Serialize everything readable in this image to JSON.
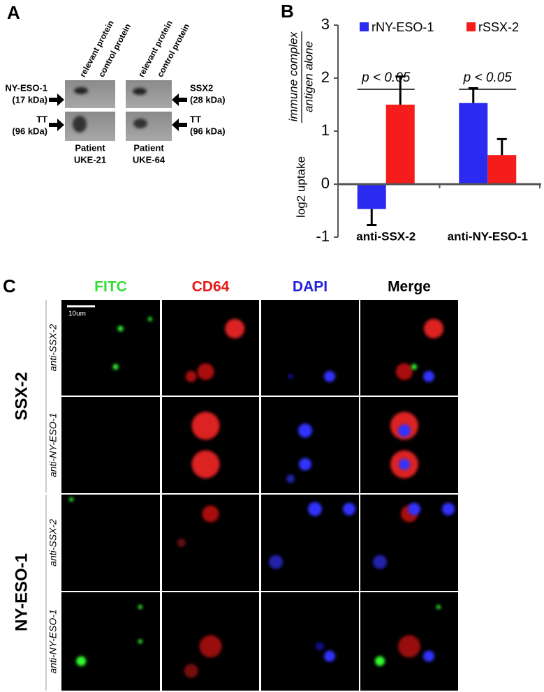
{
  "panel_a": {
    "letter": "A",
    "columns": [
      "relevant protein",
      "control protein",
      "relevant protein",
      "control protein"
    ],
    "left_labels": [
      [
        "NY-ESO-1",
        "(17 kDa)"
      ],
      [
        "TT",
        "(96 kDa)"
      ]
    ],
    "right_labels": [
      [
        "SSX2",
        "(28 kDa)"
      ],
      [
        "TT",
        "(96 kDa)"
      ]
    ],
    "patients": [
      [
        "Patient",
        "UKE-21"
      ],
      [
        "Patient",
        "UKE-64"
      ]
    ]
  },
  "chart_data": {
    "type": "bar",
    "letter": "B",
    "y_label": "log2 uptake",
    "y_label_numerator": "immune complex",
    "y_label_denominator": "antigen alone",
    "categories": [
      "anti-SSX-2",
      "anti-NY-ESO-1"
    ],
    "series": [
      {
        "name": "rNY-ESO-1",
        "color": "#2a2af0",
        "values": [
          -0.47,
          1.53
        ],
        "errors": [
          0.3,
          0.28
        ]
      },
      {
        "name": "rSSX-2",
        "color": "#f51c1c",
        "values": [
          1.5,
          0.55
        ],
        "errors": [
          0.53,
          0.3
        ]
      }
    ],
    "annotations": [
      "p < 0.05",
      "p < 0.05"
    ],
    "ylim": [
      -1,
      3
    ],
    "yticks": [
      -1,
      0,
      1,
      2,
      3
    ],
    "legend": "top"
  },
  "panel_c": {
    "letter": "C",
    "columns": [
      {
        "label": "FITC",
        "color": "#33dd33"
      },
      {
        "label": "CD64",
        "color": "#e51b1b"
      },
      {
        "label": "DAPI",
        "color": "#2222dd"
      },
      {
        "label": "Merge",
        "color": "#000000"
      }
    ],
    "groups": [
      "SSX-2",
      "NY-ESO-1"
    ],
    "rows": [
      "anti-SSX-2",
      "anti-NY-ESO-1",
      "anti-SSX-2",
      "anti-NY-ESO-1"
    ],
    "scale_bar": "10um"
  }
}
